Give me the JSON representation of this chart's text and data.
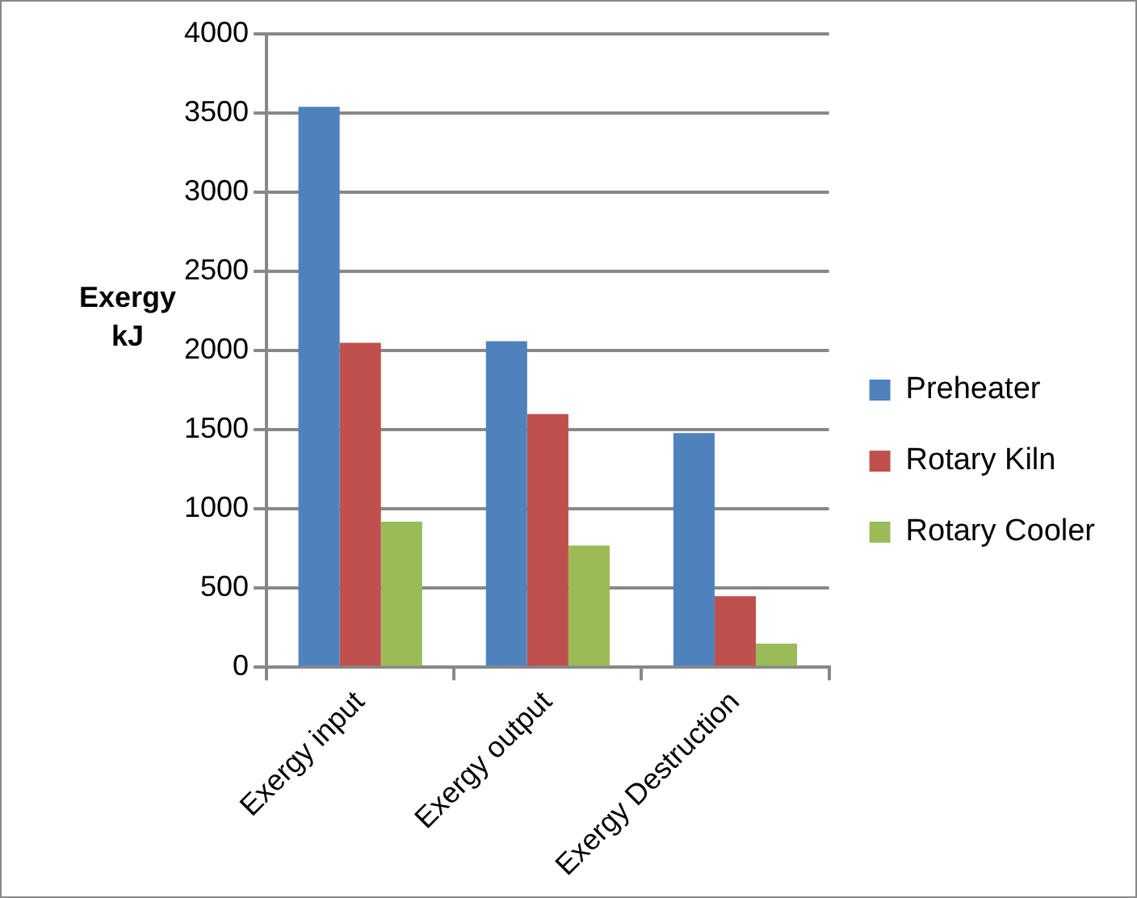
{
  "chart_data": {
    "type": "bar",
    "ylabel": "Exergy kJ",
    "categories": [
      "Exergy input",
      "Exergy output",
      "Exergy Destruction"
    ],
    "series": [
      {
        "name": "Preheater",
        "color": "#4f81bd",
        "values": [
          3540,
          2060,
          1480
        ]
      },
      {
        "name": "Rotary Kiln",
        "color": "#c0504d",
        "values": [
          2050,
          1600,
          450
        ]
      },
      {
        "name": "Rotary Cooler",
        "color": "#9bbb59",
        "values": [
          920,
          770,
          150
        ]
      }
    ],
    "ylim": [
      0,
      4000
    ],
    "yticks": [
      0,
      500,
      1000,
      1500,
      2000,
      2500,
      3000,
      3500,
      4000
    ],
    "grid": "y",
    "legend": "right"
  }
}
